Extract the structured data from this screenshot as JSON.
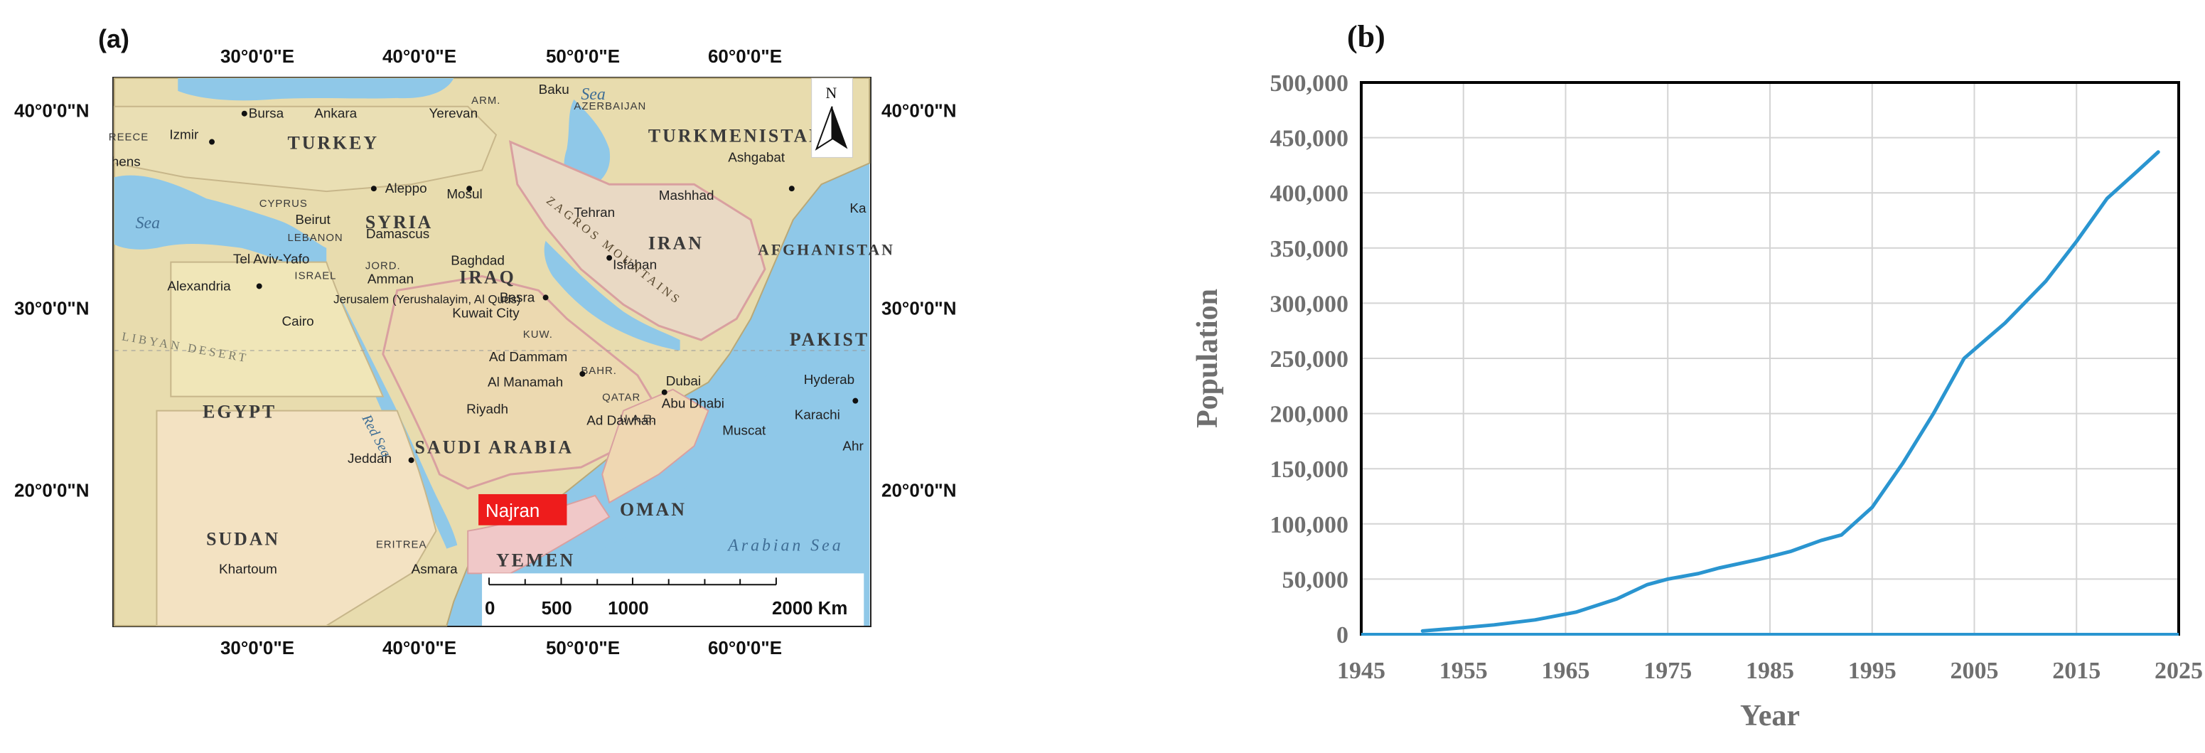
{
  "panels": {
    "a_label": "(a)",
    "b_label": "(b)"
  },
  "map": {
    "lon_labels": [
      "30°0'0\"E",
      "40°0'0\"E",
      "50°0'0\"E",
      "60°0'0\"E"
    ],
    "lat_labels": [
      "40°0'0\"N",
      "30°0'0\"N",
      "20°0'0\"N"
    ],
    "north_letter": "N",
    "highlight": "Najran",
    "scale_labels": [
      "0",
      "500",
      "1000",
      "2000 Km"
    ],
    "countries": [
      "TURKEY",
      "TURKMENISTAN",
      "SYRIA",
      "IRAQ",
      "IRAN",
      "AFGHANISTAN",
      "EGYPT",
      "SAUDI ARABIA",
      "SUDAN",
      "YEMEN",
      "OMAN",
      "PAKIST",
      "CYPRUS",
      "LEBANON",
      "ISRAEL",
      "JORD.",
      "KUW.",
      "BAHR.",
      "QATAR",
      "U.A.E.",
      "ERITREA",
      "AZERBAIJAN",
      "ARM.",
      "REECE"
    ],
    "cities": [
      "Bursa",
      "Ankara",
      "Izmir",
      "hens",
      "Yerevan",
      "Baku",
      "Ashgabat",
      "Mashhad",
      "Aleppo",
      "Mosul",
      "Tehran",
      "Beirut",
      "Damascus",
      "Baghdad",
      "Isfahan",
      "Tel Aviv-Yafo",
      "Amman",
      "Alexandria",
      "Jerusalem (Yerushalayim, Al Quds)",
      "Cairo",
      "Basra",
      "Kuwait City",
      "Ad Dammam",
      "Al Manamah",
      "Dubai",
      "Abu Dhabi",
      "Riyadh",
      "Ad Dawhah",
      "Muscat",
      "Karachi",
      "Hyderab",
      "Jeddah",
      "Khartoum",
      "Asmara",
      "Ka",
      "Ahr"
    ],
    "waters": [
      "Sea",
      "Sea",
      "Red Sea",
      "Arabian Sea",
      "ZAGROS MOUNTAINS",
      "LIBYAN DESERT"
    ]
  },
  "chart_data": {
    "type": "line",
    "title": "",
    "xlabel": "Year",
    "ylabel": "Population",
    "xlim": [
      1945,
      2025
    ],
    "ylim": [
      0,
      500000
    ],
    "x_ticks": [
      "1945",
      "1955",
      "1965",
      "1975",
      "1985",
      "1995",
      "2005",
      "2015",
      "2025"
    ],
    "y_ticks": [
      "0",
      "50,000",
      "100,000",
      "150,000",
      "200,000",
      "250,000",
      "300,000",
      "350,000",
      "400,000",
      "450,000",
      "500,000"
    ],
    "grid": true,
    "legend": "none",
    "series": [
      {
        "color": "#2a95d0",
        "x": [
          1951,
          1955,
          1958,
          1962,
          1966,
          1970,
          1973,
          1975,
          1978,
          1980,
          1984,
          1987,
          1990,
          1992,
          1995,
          1998,
          2001,
          2004,
          2008,
          2012,
          2015,
          2018,
          2021,
          2023
        ],
        "y": [
          3000,
          6000,
          8500,
          13000,
          20000,
          32000,
          45000,
          50000,
          55000,
          60000,
          68000,
          75000,
          85000,
          90000,
          115000,
          155000,
          200000,
          250000,
          282000,
          320000,
          356000,
          395000,
          420000,
          437000
        ]
      }
    ]
  }
}
